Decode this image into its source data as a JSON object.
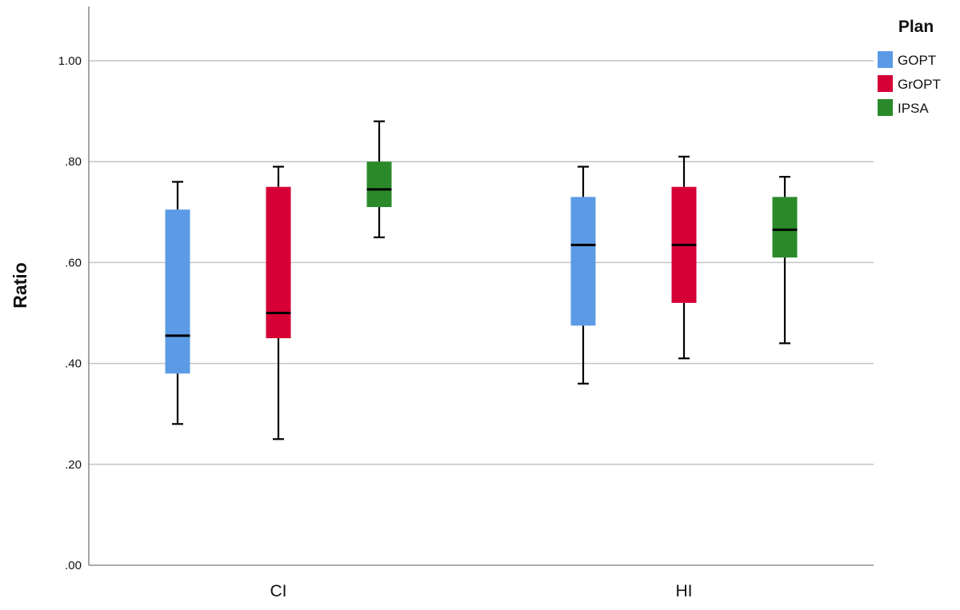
{
  "chart_data": {
    "type": "box",
    "ylabel": "Ratio",
    "xlabel": "",
    "ylim": [
      0,
      1.1
    ],
    "yticks": [
      {
        "value": 0.0,
        "label": ".00"
      },
      {
        "value": 0.2,
        "label": ".20"
      },
      {
        "value": 0.4,
        "label": ".40"
      },
      {
        "value": 0.6,
        "label": ".60"
      },
      {
        "value": 0.8,
        "label": ".80"
      },
      {
        "value": 1.0,
        "label": "1.00"
      }
    ],
    "grid": true,
    "categories": [
      "CI",
      "HI"
    ],
    "legend": {
      "title": "Plan",
      "placement": "top-right"
    },
    "series": [
      {
        "name": "GOPT",
        "color": "#5b9be5",
        "boxes": [
          {
            "min": 0.28,
            "q1": 0.38,
            "median": 0.455,
            "q3": 0.705,
            "max": 0.76
          },
          {
            "min": 0.36,
            "q1": 0.475,
            "median": 0.635,
            "q3": 0.73,
            "max": 0.79
          }
        ]
      },
      {
        "name": "GrOPT",
        "color": "#d60036",
        "boxes": [
          {
            "min": 0.25,
            "q1": 0.45,
            "median": 0.5,
            "q3": 0.75,
            "max": 0.79
          },
          {
            "min": 0.41,
            "q1": 0.52,
            "median": 0.635,
            "q3": 0.75,
            "max": 0.81
          }
        ]
      },
      {
        "name": "IPSA",
        "color": "#2a8a2a",
        "boxes": [
          {
            "min": 0.65,
            "q1": 0.71,
            "median": 0.745,
            "q3": 0.8,
            "max": 0.88
          },
          {
            "min": 0.44,
            "q1": 0.61,
            "median": 0.665,
            "q3": 0.73,
            "max": 0.77
          }
        ]
      }
    ]
  }
}
